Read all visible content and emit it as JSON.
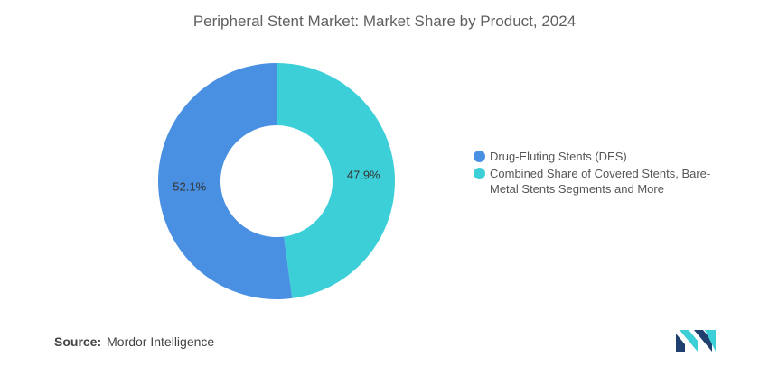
{
  "chart_data": {
    "type": "pie",
    "title": "Peripheral Stent Market: Market Share by Product, 2024",
    "donut": true,
    "slices": [
      {
        "label": "Drug-Eluting Stents (DES)",
        "value": 52.1,
        "display": "52.1%",
        "color": "#4a90e2"
      },
      {
        "label": "Combined Share of Covered Stents, Bare-Metal Stents Segments and More",
        "value": 47.9,
        "display": "47.9%",
        "color": "#3ccfd8"
      }
    ],
    "legend_position": "right"
  },
  "source": {
    "label": "Source:",
    "value": "Mordor Intelligence"
  },
  "logo": {
    "name": "mordor-intelligence-logo",
    "color_dark": "#1f3f6e",
    "color_light": "#3ccfd8"
  }
}
